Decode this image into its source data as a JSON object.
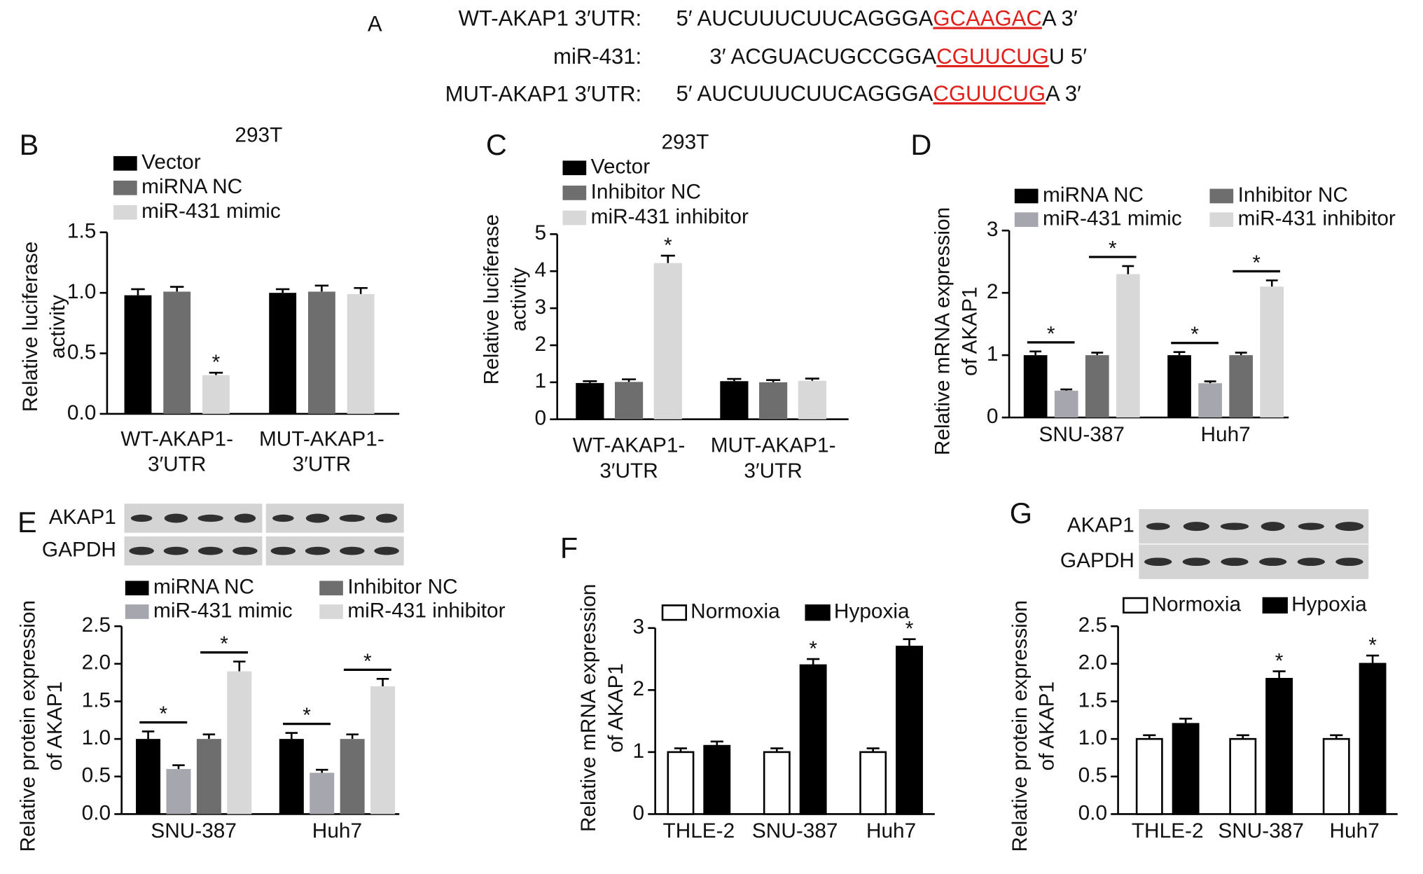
{
  "panel_a": {
    "label": "A",
    "rows": [
      {
        "name": "WT-AKAP1 3′UTR:",
        "prefix": "5′ AUCUUUCUUCAGGGA",
        "site": "GCAAGAC",
        "suffix": "A 3′"
      },
      {
        "name": "miR-431:",
        "prefix": "3′ ACGUACUGCCGGA",
        "site": "CGUUCUG",
        "suffix": "U 5′"
      },
      {
        "name": "MUT-AKAP1 3′UTR:",
        "prefix": "5′ AUCUUUCUUCAGGGA",
        "site": "CGUUCUG",
        "suffix": "A 3′"
      }
    ]
  },
  "chart_data": [
    {
      "type": "bar",
      "panel": "B",
      "title": "293T",
      "ylabel": [
        "Relative luciferase",
        "activity"
      ],
      "categories": [
        [
          "WT-AKAP1-",
          "3′UTR"
        ],
        [
          "MUT-AKAP1-",
          "3′UTR"
        ]
      ],
      "series": [
        {
          "name": "Vector",
          "color": "#000000",
          "values": [
            0.98,
            1.0
          ],
          "errors": [
            0.05,
            0.03
          ],
          "significance": [
            null,
            null
          ]
        },
        {
          "name": "miRNA NC",
          "color": "#6e6e6e",
          "values": [
            1.01,
            1.01
          ],
          "errors": [
            0.04,
            0.05
          ],
          "significance": [
            null,
            null
          ]
        },
        {
          "name": "miR-431 mimic",
          "color": "#d8d8d8",
          "values": [
            0.32,
            0.99
          ],
          "errors": [
            0.02,
            0.05
          ],
          "significance": [
            "*",
            null
          ]
        }
      ],
      "ylim": [
        0,
        1.5
      ],
      "yticks": [
        {
          "value": 0,
          "label": "0.0"
        },
        0.5,
        {
          "value": 1,
          "label": "1.0"
        },
        1.5
      ]
    },
    {
      "type": "bar",
      "panel": "C",
      "title": "293T",
      "ylabel": [
        "Relative luciferase",
        "activity"
      ],
      "categories": [
        [
          "WT-AKAP1-",
          "3′UTR"
        ],
        [
          "MUT-AKAP1-",
          "3′UTR"
        ]
      ],
      "series": [
        {
          "name": "Vector",
          "color": "#000000",
          "values": [
            0.98,
            1.03
          ],
          "errors": [
            0.05,
            0.06
          ],
          "significance": [
            null,
            null
          ]
        },
        {
          "name": "Inhibitor NC",
          "color": "#6e6e6e",
          "values": [
            1.01,
            1.0
          ],
          "errors": [
            0.07,
            0.06
          ],
          "significance": [
            null,
            null
          ]
        },
        {
          "name": "miR-431 inhibitor",
          "color": "#d8d8d8",
          "values": [
            4.22,
            1.04
          ],
          "errors": [
            0.2,
            0.06
          ],
          "significance": [
            "*",
            null
          ]
        }
      ],
      "ylim": [
        0,
        5
      ],
      "yticks": [
        0,
        1,
        2,
        3,
        4,
        5
      ]
    },
    {
      "type": "bar",
      "panel": "D",
      "ylabel": [
        "Relative mRNA expression",
        "of AKAP1"
      ],
      "bracket": true,
      "categories": [
        [
          "SNU-387"
        ],
        [
          "Huh7"
        ]
      ],
      "series": [
        {
          "name": "miRNA NC",
          "color": "#000000",
          "values": [
            1.0,
            1.0
          ],
          "errors": [
            0.06,
            0.05
          ],
          "significance": [
            null,
            null
          ]
        },
        {
          "name": "miR-431 mimic",
          "color": "#a6a6ae",
          "values": [
            0.43,
            0.55
          ],
          "errors": [
            0.02,
            0.03
          ],
          "significance": [
            "*",
            "*"
          ]
        },
        {
          "name": "Inhibitor NC",
          "color": "#6e6e6e",
          "values": [
            1.0,
            1.0
          ],
          "errors": [
            0.04,
            0.04
          ],
          "significance": [
            null,
            null
          ]
        },
        {
          "name": "miR-431 inhibitor",
          "color": "#d8d8d8",
          "values": [
            2.3,
            2.1
          ],
          "errors": [
            0.13,
            0.1
          ],
          "significance": [
            "*",
            "*"
          ]
        }
      ],
      "ylim": [
        0,
        3
      ],
      "yticks": [
        0,
        1,
        2,
        3
      ]
    },
    {
      "type": "bar",
      "panel": "E",
      "ylabel": [
        "Relative protein expression",
        "of AKAP1"
      ],
      "bracket": true,
      "blot": [
        "AKAP1",
        "GAPDH"
      ],
      "categories": [
        [
          "SNU-387"
        ],
        [
          "Huh7"
        ]
      ],
      "series": [
        {
          "name": "miRNA NC",
          "color": "#000000",
          "values": [
            1.0,
            1.0
          ],
          "errors": [
            0.1,
            0.08
          ],
          "significance": [
            null,
            null
          ]
        },
        {
          "name": "miR-431 mimic",
          "color": "#a6a6ae",
          "values": [
            0.6,
            0.55
          ],
          "errors": [
            0.05,
            0.04
          ],
          "significance": [
            "*",
            "*"
          ]
        },
        {
          "name": "Inhibitor NC",
          "color": "#6e6e6e",
          "values": [
            1.0,
            1.0
          ],
          "errors": [
            0.06,
            0.06
          ],
          "significance": [
            null,
            null
          ]
        },
        {
          "name": "miR-431 inhibitor",
          "color": "#d8d8d8",
          "values": [
            1.9,
            1.7
          ],
          "errors": [
            0.13,
            0.1
          ],
          "significance": [
            "*",
            "*"
          ]
        }
      ],
      "ylim": [
        0,
        2.5
      ],
      "yticks": [
        {
          "value": 0,
          "label": "0.0"
        },
        0.5,
        {
          "value": 1,
          "label": "1.0"
        },
        1.5,
        {
          "value": 2,
          "label": "2.0"
        },
        2.5
      ]
    },
    {
      "type": "bar",
      "panel": "F",
      "ylabel": [
        "Relative mRNA expression",
        "of AKAP1"
      ],
      "edgecolor": "#000000",
      "categories": [
        [
          "THLE-2"
        ],
        [
          "SNU-387"
        ],
        [
          "Huh7"
        ]
      ],
      "series": [
        {
          "name": "Normoxia",
          "color": "#ffffff",
          "values": [
            1.0,
            1.0,
            1.0
          ],
          "errors": [
            0.06,
            0.06,
            0.06
          ],
          "significance": [
            null,
            null,
            null
          ]
        },
        {
          "name": "Hypoxia",
          "color": "#000000",
          "values": [
            1.1,
            2.4,
            2.7
          ],
          "errors": [
            0.07,
            0.1,
            0.12
          ],
          "significance": [
            null,
            "*",
            "*"
          ]
        }
      ],
      "ylim": [
        0,
        3
      ],
      "yticks": [
        0,
        1,
        2,
        3
      ]
    },
    {
      "type": "bar",
      "panel": "G",
      "ylabel": [
        "Relative protein expression",
        "of AKAP1"
      ],
      "edgecolor": "#000000",
      "blot": [
        "AKAP1",
        "GAPDH"
      ],
      "categories": [
        [
          "THLE-2"
        ],
        [
          "SNU-387"
        ],
        [
          "Huh7"
        ]
      ],
      "series": [
        {
          "name": "Normoxia",
          "color": "#ffffff",
          "values": [
            1.0,
            1.0,
            1.0
          ],
          "errors": [
            0.05,
            0.05,
            0.05
          ],
          "significance": [
            null,
            null,
            null
          ]
        },
        {
          "name": "Hypoxia",
          "color": "#000000",
          "values": [
            1.2,
            1.8,
            2.0
          ],
          "errors": [
            0.07,
            0.1,
            0.11
          ],
          "significance": [
            null,
            "*",
            "*"
          ]
        }
      ],
      "ylim": [
        0,
        2.5
      ],
      "yticks": [
        {
          "value": 0,
          "label": "0.0"
        },
        0.5,
        {
          "value": 1,
          "label": "1.0"
        },
        1.5,
        {
          "value": 2,
          "label": "2.0"
        },
        2.5
      ]
    }
  ]
}
